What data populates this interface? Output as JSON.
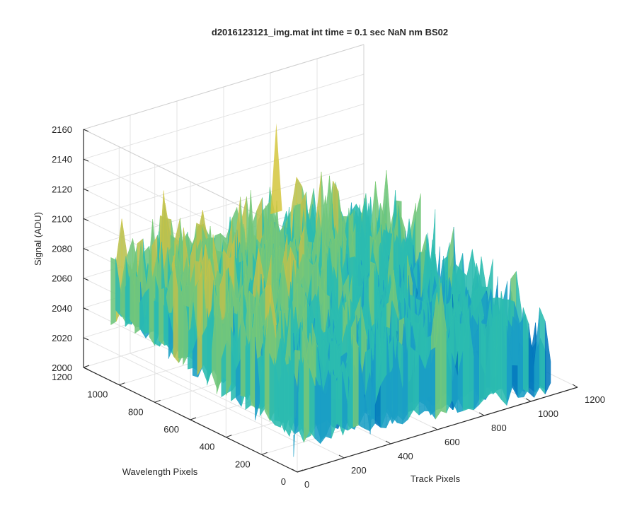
{
  "chart_data": {
    "type": "surface3d",
    "title": "d2016123121_img.mat int time = 0.1 sec  NaN nm BS02",
    "xlabel": "Track Pixels",
    "ylabel": "Wavelength Pixels",
    "zlabel": "Signal (ADU)",
    "xlim": [
      0,
      1200
    ],
    "ylim": [
      0,
      1200
    ],
    "zlim": [
      2000,
      2160
    ],
    "x_ticks": [
      "0",
      "200",
      "400",
      "600",
      "800",
      "1000",
      "1200"
    ],
    "y_ticks": [
      "0",
      "200",
      "400",
      "600",
      "800",
      "1000",
      "1200"
    ],
    "z_ticks": [
      "2000",
      "2020",
      "2040",
      "2060",
      "2080",
      "2100",
      "2120",
      "2140",
      "2160"
    ],
    "grid": true,
    "colormap": [
      "#0072bd",
      "#1a9ec6",
      "#2ebfae",
      "#7ecb72",
      "#d4c53c",
      "#f5d230"
    ],
    "surface_summary": {
      "baseline_low_corner": 2035,
      "baseline_high_corner": 2080,
      "noise_amplitude": 40,
      "peak_value": 2150
    }
  }
}
